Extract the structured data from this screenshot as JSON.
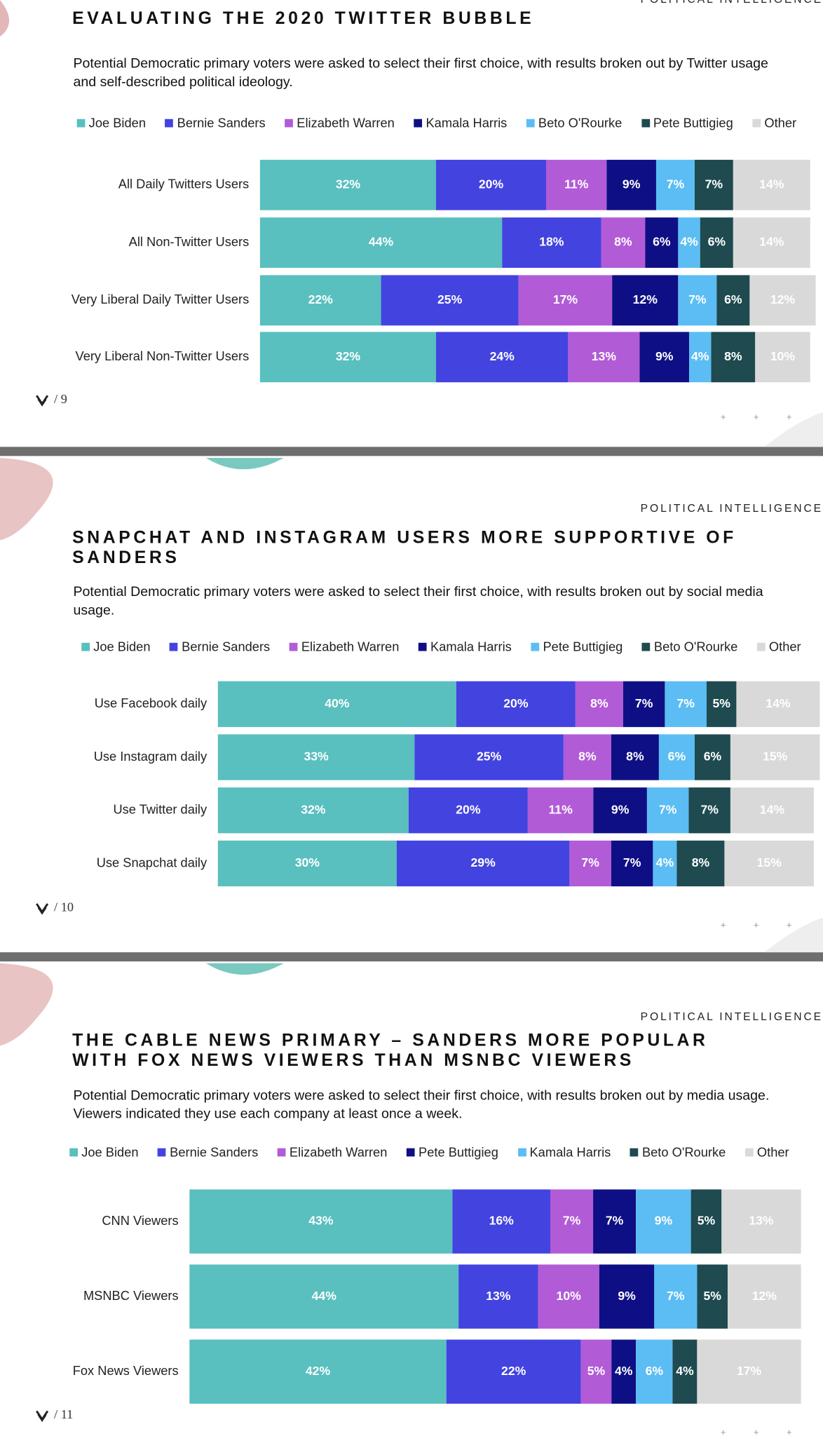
{
  "brand": "POLITICAL INTELLIGENCE",
  "chart_data": [
    {
      "type": "bar",
      "orientation": "horizontal",
      "stacked": true,
      "title": "EVALUATING THE 2020 TWITTER BUBBLE",
      "subtitle": "Potential Democratic primary voters were asked to select their first choice, with results broken out by Twitter usage and self-described political ideology.",
      "page_label": "/ 9",
      "xlim": [
        0,
        100
      ],
      "categories": [
        "All Daily Twitters Users",
        "All Non-Twitter Users",
        "Very Liberal Daily Twitter Users",
        "Very Liberal Non-Twitter Users"
      ],
      "series": [
        {
          "name": "Joe Biden",
          "color": "#59bfbf",
          "values": [
            32,
            44,
            22,
            32
          ],
          "value_labels": [
            "32%",
            "44%",
            "22%",
            "32%"
          ]
        },
        {
          "name": "Bernie Sanders",
          "color": "#4343e0",
          "values": [
            20,
            18,
            25,
            24
          ],
          "value_labels": [
            "20%",
            "18%",
            "25%",
            "24%"
          ]
        },
        {
          "name": "Elizabeth Warren",
          "color": "#b25bd6",
          "values": [
            11,
            8,
            17,
            13
          ],
          "value_labels": [
            "11%",
            "8%",
            "17%",
            "13%"
          ]
        },
        {
          "name": "Kamala Harris",
          "color": "#0f0f85",
          "values": [
            9,
            6,
            12,
            9
          ],
          "value_labels": [
            "9%",
            "6%",
            "12%",
            "9%"
          ]
        },
        {
          "name": "Beto O'Rourke",
          "color": "#5bbdf3",
          "values": [
            7,
            4,
            7,
            4
          ],
          "value_labels": [
            "7%",
            "4%",
            "7%",
            "4%"
          ]
        },
        {
          "name": "Pete Buttigieg",
          "color": "#1e4a50",
          "values": [
            7,
            6,
            6,
            8
          ],
          "value_labels": [
            "7%",
            "6%",
            "6%",
            "8%"
          ]
        },
        {
          "name": "Other",
          "color": "#d9d9d9",
          "values": [
            14,
            14,
            12,
            10
          ],
          "value_labels": [
            "14%",
            "14%",
            "12%",
            "10%"
          ]
        }
      ]
    },
    {
      "type": "bar",
      "orientation": "horizontal",
      "stacked": true,
      "title": "SNAPCHAT AND INSTAGRAM USERS MORE SUPPORTIVE OF SANDERS",
      "subtitle": "Potential Democratic primary voters were asked to select their first choice, with results broken out by social media usage.",
      "page_label": "/ 10",
      "xlim": [
        0,
        100
      ],
      "categories": [
        "Use Facebook daily",
        "Use Instagram daily",
        "Use Twitter daily",
        "Use Snapchat daily"
      ],
      "series": [
        {
          "name": "Joe Biden",
          "color": "#59bfbf",
          "values": [
            40,
            33,
            32,
            30
          ],
          "value_labels": [
            "40%",
            "33%",
            "32%",
            "30%"
          ]
        },
        {
          "name": "Bernie Sanders",
          "color": "#4343e0",
          "values": [
            20,
            25,
            20,
            29
          ],
          "value_labels": [
            "20%",
            "25%",
            "20%",
            "29%"
          ]
        },
        {
          "name": "Elizabeth Warren",
          "color": "#b25bd6",
          "values": [
            8,
            8,
            11,
            7
          ],
          "value_labels": [
            "8%",
            "8%",
            "11%",
            "7%"
          ]
        },
        {
          "name": "Kamala Harris",
          "color": "#0f0f85",
          "values": [
            7,
            8,
            9,
            7
          ],
          "value_labels": [
            "7%",
            "8%",
            "9%",
            "7%"
          ]
        },
        {
          "name": "Pete Buttigieg",
          "color": "#5bbdf3",
          "values": [
            7,
            6,
            7,
            4
          ],
          "value_labels": [
            "7%",
            "6%",
            "7%",
            "4%"
          ]
        },
        {
          "name": "Beto O'Rourke",
          "color": "#1e4a50",
          "values": [
            5,
            6,
            7,
            8
          ],
          "value_labels": [
            "5%",
            "6%",
            "7%",
            "8%"
          ]
        },
        {
          "name": "Other",
          "color": "#d9d9d9",
          "values": [
            14,
            15,
            14,
            15
          ],
          "value_labels": [
            "14%",
            "15%",
            "14%",
            "15%"
          ]
        }
      ]
    },
    {
      "type": "bar",
      "orientation": "horizontal",
      "stacked": true,
      "title": "THE CABLE NEWS PRIMARY – SANDERS MORE POPULAR WITH FOX NEWS VIEWERS THAN MSNBC VIEWERS",
      "subtitle": "Potential Democratic primary voters were asked to select their first choice, with results broken out by media usage. Viewers indicated they use each company at least once a week.",
      "page_label": "/ 11",
      "xlim": [
        0,
        100
      ],
      "categories": [
        "CNN Viewers",
        "MSNBC Viewers",
        "Fox News Viewers"
      ],
      "series": [
        {
          "name": "Joe Biden",
          "color": "#59bfbf",
          "values": [
            43,
            44,
            42
          ],
          "value_labels": [
            "43%",
            "44%",
            "42%"
          ]
        },
        {
          "name": "Bernie Sanders",
          "color": "#4343e0",
          "values": [
            16,
            13,
            22
          ],
          "value_labels": [
            "16%",
            "13%",
            "22%"
          ]
        },
        {
          "name": "Elizabeth Warren",
          "color": "#b25bd6",
          "values": [
            7,
            10,
            5
          ],
          "value_labels": [
            "7%",
            "10%",
            "5%"
          ]
        },
        {
          "name": "Pete Buttigieg",
          "color": "#0f0f85",
          "values": [
            7,
            9,
            4
          ],
          "value_labels": [
            "7%",
            "9%",
            "4%"
          ]
        },
        {
          "name": "Kamala Harris",
          "color": "#5bbdf3",
          "values": [
            9,
            7,
            6
          ],
          "value_labels": [
            "9%",
            "7%",
            "6%"
          ]
        },
        {
          "name": "Beto O'Rourke",
          "color": "#1e4a50",
          "values": [
            5,
            5,
            4
          ],
          "value_labels": [
            "5%",
            "5%",
            "4%"
          ]
        },
        {
          "name": "Other",
          "color": "#d9d9d9",
          "values": [
            13,
            12,
            17
          ],
          "value_labels": [
            "13%",
            "12%",
            "17%"
          ]
        }
      ]
    }
  ]
}
